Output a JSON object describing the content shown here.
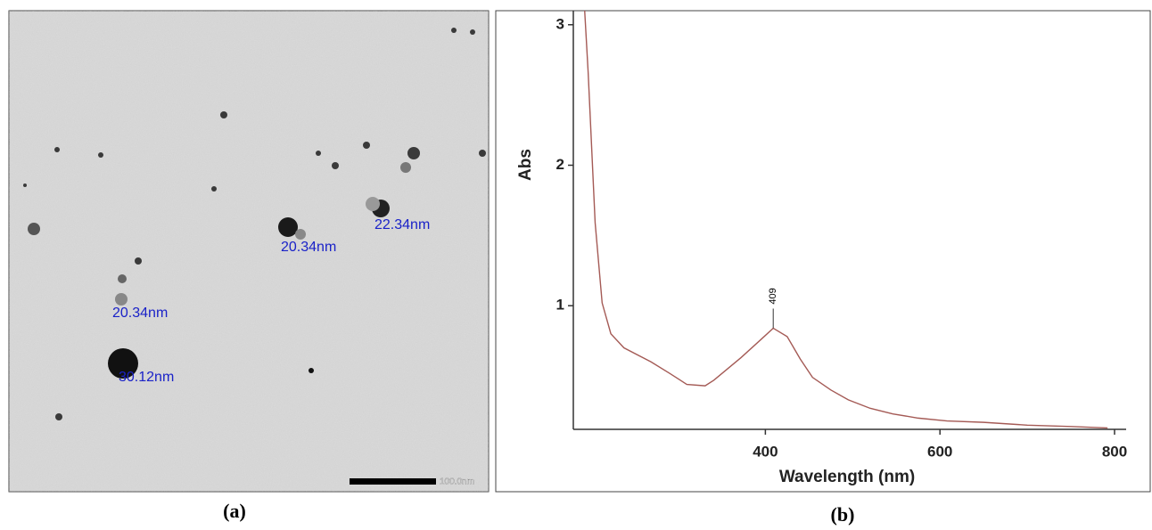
{
  "panel_a": {
    "measurements": [
      "22.34nm",
      "20.34nm",
      "20.34nm",
      "30.12nm"
    ],
    "scale_bar": "100.0nm",
    "caption": "(a)"
  },
  "chart_data": {
    "type": "line",
    "x_label": "Wavelength (nm)",
    "y_label": "Abs",
    "caption": "(b)",
    "x": [
      193,
      197,
      205,
      213,
      223,
      238,
      269,
      290,
      310,
      331,
      341,
      372,
      395,
      409,
      425,
      440,
      454,
      475,
      495,
      520,
      546,
      575,
      608,
      650,
      700,
      750,
      792
    ],
    "series": [
      {
        "color": "#a45a55",
        "values": [
          3.1,
          2.66,
          1.59,
          1.02,
          0.8,
          0.7,
          0.6,
          0.52,
          0.44,
          0.43,
          0.47,
          0.63,
          0.76,
          0.84,
          0.78,
          0.62,
          0.49,
          0.4,
          0.33,
          0.27,
          0.23,
          0.2,
          0.18,
          0.17,
          0.15,
          0.14,
          0.13
        ]
      }
    ],
    "annotations": [
      {
        "x": 409,
        "y": 0.84,
        "label": "409"
      }
    ],
    "xlim": [
      180,
      800
    ],
    "ylim": [
      0.12,
      3.1
    ],
    "xticks": [
      400,
      600,
      800
    ],
    "yticks": [
      1,
      2,
      3
    ],
    "grid": false
  }
}
